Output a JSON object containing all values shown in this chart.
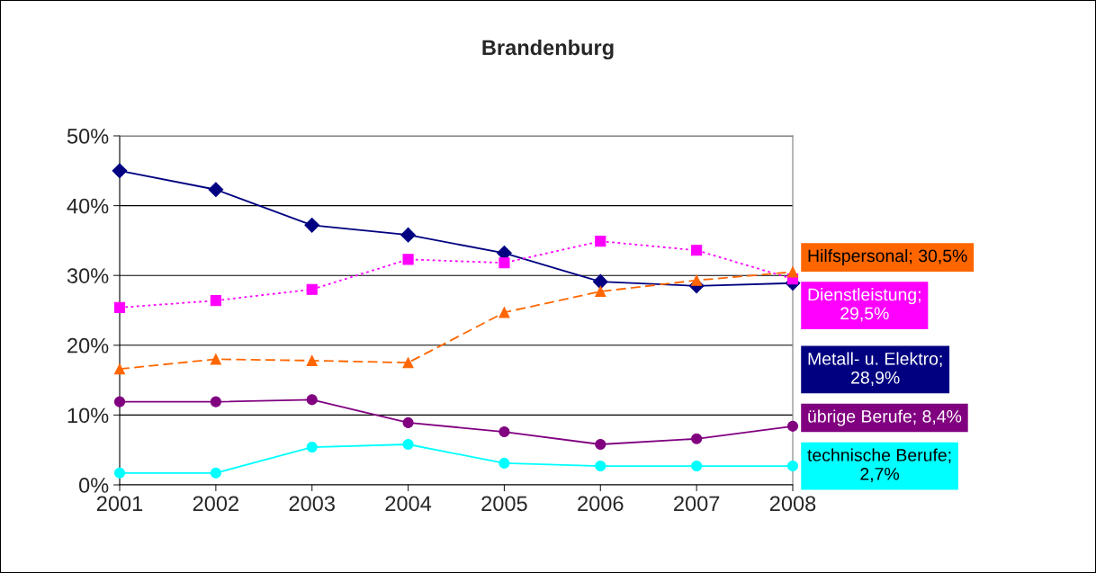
{
  "chart_data": {
    "type": "line",
    "title": "Brandenburg",
    "categories": [
      "2001",
      "2002",
      "2003",
      "2004",
      "2005",
      "2006",
      "2007",
      "2008"
    ],
    "series": [
      {
        "name": "Hilfspersonal; 30,5%",
        "color": "#ff6600",
        "marker": "triangle",
        "line_style": "dashed",
        "values": [
          16.6,
          18.0,
          17.8,
          17.5,
          24.7,
          27.7,
          29.3,
          30.5
        ]
      },
      {
        "name": "Dienstleistung;\n29,5%",
        "color": "#ff00ff",
        "marker": "square",
        "line_style": "dotted",
        "values": [
          25.4,
          26.4,
          28.0,
          32.3,
          31.8,
          34.9,
          33.6,
          29.5
        ]
      },
      {
        "name": "Metall- u. Elektro;\n28,9%",
        "color": "#000080",
        "marker": "diamond",
        "line_style": "solid",
        "values": [
          45.0,
          42.3,
          37.2,
          35.8,
          33.2,
          29.1,
          28.5,
          28.9
        ]
      },
      {
        "name": "übrige Berufe; 8,4%",
        "color": "#800080",
        "marker": "circle",
        "line_style": "solid",
        "values": [
          11.9,
          11.9,
          12.2,
          8.9,
          7.6,
          5.8,
          6.6,
          8.4
        ]
      },
      {
        "name": "technische Berufe;\n2,7%",
        "color": "#00ffff",
        "marker": "circle",
        "line_style": "solid",
        "values": [
          1.7,
          1.7,
          5.4,
          5.8,
          3.1,
          2.7,
          2.7,
          2.7
        ]
      }
    ],
    "ylim": [
      0,
      50
    ],
    "yticks": [
      {
        "value": 0,
        "label": "0%"
      },
      {
        "value": 10,
        "label": "10%"
      },
      {
        "value": 20,
        "label": "20%"
      },
      {
        "value": 30,
        "label": "30%"
      },
      {
        "value": 40,
        "label": "40%"
      },
      {
        "value": 50,
        "label": "50%"
      }
    ],
    "grid": "y",
    "legend": false
  }
}
